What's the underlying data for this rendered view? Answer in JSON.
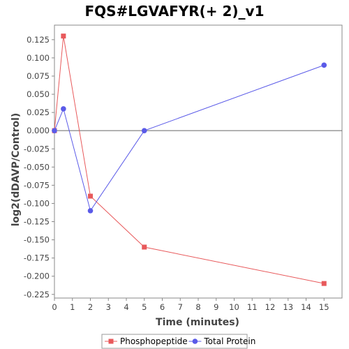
{
  "chart_data": {
    "type": "line",
    "title": "FQS#LGVAFYR(+ 2)_v1",
    "xlabel": "Time (minutes)",
    "ylabel": "log2(dDAVP/Control)",
    "xlim": [
      0,
      16
    ],
    "ylim": [
      -0.23,
      0.145
    ],
    "xticks": [
      0,
      1,
      2,
      3,
      4,
      5,
      6,
      7,
      8,
      9,
      10,
      11,
      12,
      13,
      14,
      15
    ],
    "yticks": [
      -0.225,
      -0.2,
      -0.175,
      -0.15,
      -0.125,
      -0.1,
      -0.075,
      -0.05,
      -0.025,
      0.0,
      0.025,
      0.05,
      0.075,
      0.1,
      0.125
    ],
    "ytick_labels": [
      "-0.225",
      "-0.200",
      "-0.175",
      "-0.150",
      "-0.125",
      "-0.100",
      "-0.075",
      "-0.050",
      "-0.025",
      "0.000",
      "0.025",
      "0.050",
      "0.075",
      "0.100",
      "0.125"
    ],
    "zero_line": true,
    "grid": false,
    "legend_position": "bottom-center",
    "series": [
      {
        "name": "Phosphopeptide",
        "color": "#e8595b",
        "marker": "square",
        "x": [
          0,
          0.5,
          2,
          5,
          15
        ],
        "y": [
          0.0,
          0.13,
          -0.09,
          -0.16,
          -0.21
        ]
      },
      {
        "name": "Total Protein",
        "color": "#5a5ae8",
        "marker": "circle",
        "x": [
          0,
          0.5,
          2,
          5,
          15
        ],
        "y": [
          0.0,
          0.03,
          -0.11,
          0.0,
          0.09
        ]
      }
    ]
  }
}
